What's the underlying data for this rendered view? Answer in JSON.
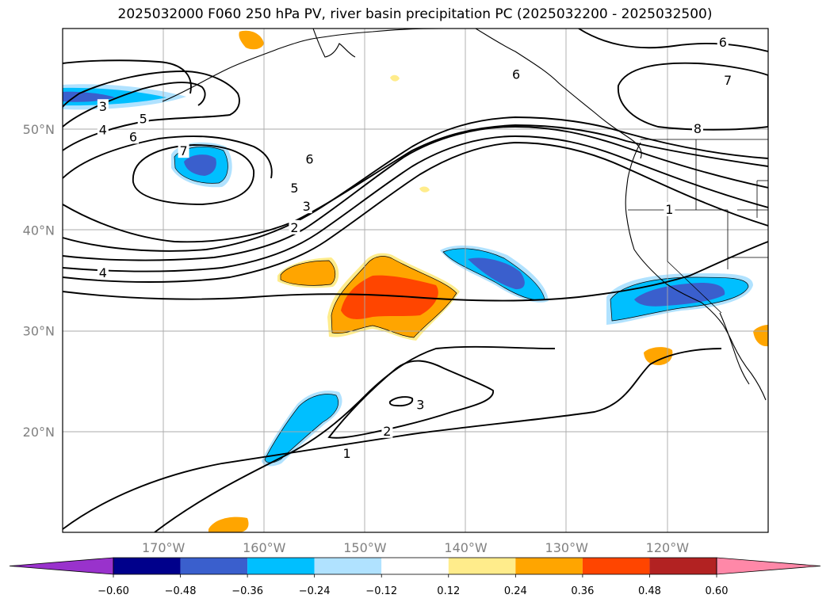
{
  "title": "2025032000 F060 250 hPa PV, river basin precipitation PC (2025032200 - 2025032500)",
  "map": {
    "lon_range": [
      -180,
      -110
    ],
    "lat_range": [
      10,
      60
    ],
    "lat_labels": [
      {
        "lat": 50,
        "text": "50°N"
      },
      {
        "lat": 40,
        "text": "40°N"
      },
      {
        "lat": 30,
        "text": "30°N"
      },
      {
        "lat": 20,
        "text": "20°N"
      }
    ],
    "lon_labels": [
      {
        "lon": -170,
        "text": "170°W"
      },
      {
        "lon": -160,
        "text": "160°W"
      },
      {
        "lon": -150,
        "text": "150°W"
      },
      {
        "lon": -140,
        "text": "140°W"
      },
      {
        "lon": -130,
        "text": "130°W"
      },
      {
        "lon": -120,
        "text": "120°W"
      }
    ],
    "contour_labels": [
      {
        "text": "3",
        "lon": -176,
        "lat": 52.2
      },
      {
        "text": "4",
        "lon": -176,
        "lat": 49.9
      },
      {
        "text": "5",
        "lon": -172,
        "lat": 51.0
      },
      {
        "text": "6",
        "lon": -173,
        "lat": 49.2
      },
      {
        "text": "7",
        "lon": -168,
        "lat": 47.8
      },
      {
        "text": "6",
        "lon": -155.5,
        "lat": 47.0
      },
      {
        "text": "5",
        "lon": -157,
        "lat": 44.1
      },
      {
        "text": "3",
        "lon": -155.8,
        "lat": 42.3
      },
      {
        "text": "2",
        "lon": -157,
        "lat": 40.2
      },
      {
        "text": "4",
        "lon": -176,
        "lat": 35.7
      },
      {
        "text": "6",
        "lon": -135,
        "lat": 55.4
      },
      {
        "text": "6",
        "lon": -114.5,
        "lat": 58.6
      },
      {
        "text": "7",
        "lon": -114,
        "lat": 54.8
      },
      {
        "text": "8",
        "lon": -117,
        "lat": 50.0
      },
      {
        "text": "1",
        "lon": -119.8,
        "lat": 42.0
      },
      {
        "text": "3",
        "lon": -144.5,
        "lat": 22.6
      },
      {
        "text": "2",
        "lon": -147.8,
        "lat": 20.0
      },
      {
        "text": "1",
        "lon": -151.8,
        "lat": 17.8
      }
    ]
  },
  "colorbar": {
    "colors": [
      "#9932cc",
      "#00008b",
      "#3a5fcd",
      "#00bfff",
      "#b0e2ff",
      "#ffffff",
      "#ffec8b",
      "#ffa500",
      "#ff4500",
      "#b22222",
      "#ff88a8"
    ],
    "tick_labels": [
      "−0.60",
      "−0.48",
      "−0.36",
      "−0.24",
      "−0.12",
      "0.12",
      "0.24",
      "0.36",
      "0.48",
      "0.60"
    ]
  }
}
